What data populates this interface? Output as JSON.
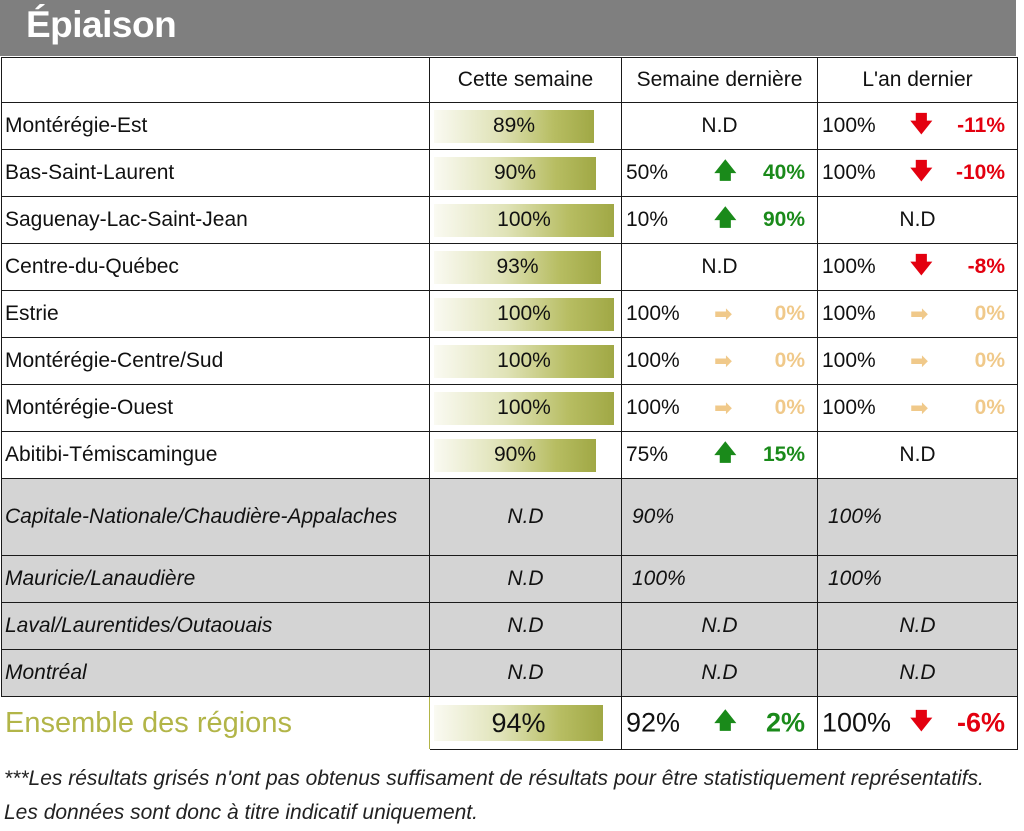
{
  "title": "Épiaison",
  "columns": [
    "",
    "Cette semaine",
    "Semaine dernière",
    "L'an dernier"
  ],
  "colors": {
    "header_bg": "#7f7f7f",
    "up": "#1a8a1a",
    "down": "#e3000f",
    "flat": "#f0c98a",
    "total_label": "#b2b548"
  },
  "rows": [
    {
      "region": "Montérégie-Est",
      "this_week": "89%",
      "this_week_pct": 89,
      "last_week": {
        "nd": "N.D"
      },
      "last_year": {
        "value": "100%",
        "arrow": "down",
        "delta": "-11%"
      }
    },
    {
      "region": "Bas-Saint-Laurent",
      "this_week": "90%",
      "this_week_pct": 90,
      "last_week": {
        "value": "50%",
        "arrow": "up",
        "delta": "40%"
      },
      "last_year": {
        "value": "100%",
        "arrow": "down",
        "delta": "-10%"
      }
    },
    {
      "region": "Saguenay-Lac-Saint-Jean",
      "this_week": "100%",
      "this_week_pct": 100,
      "last_week": {
        "value": "10%",
        "arrow": "up",
        "delta": "90%"
      },
      "last_year": {
        "nd": "N.D"
      }
    },
    {
      "region": "Centre-du-Québec",
      "this_week": "93%",
      "this_week_pct": 93,
      "last_week": {
        "nd": "N.D"
      },
      "last_year": {
        "value": "100%",
        "arrow": "down",
        "delta": "-8%"
      }
    },
    {
      "region": "Estrie",
      "this_week": "100%",
      "this_week_pct": 100,
      "last_week": {
        "value": "100%",
        "arrow": "flat",
        "delta": "0%"
      },
      "last_year": {
        "value": "100%",
        "arrow": "flat",
        "delta": "0%"
      }
    },
    {
      "region": "Montérégie-Centre/Sud",
      "this_week": "100%",
      "this_week_pct": 100,
      "last_week": {
        "value": "100%",
        "arrow": "flat",
        "delta": "0%"
      },
      "last_year": {
        "value": "100%",
        "arrow": "flat",
        "delta": "0%"
      }
    },
    {
      "region": "Montérégie-Ouest",
      "this_week": "100%",
      "this_week_pct": 100,
      "last_week": {
        "value": "100%",
        "arrow": "flat",
        "delta": "0%"
      },
      "last_year": {
        "value": "100%",
        "arrow": "flat",
        "delta": "0%"
      }
    },
    {
      "region": "Abitibi-Témiscamingue",
      "this_week": "90%",
      "this_week_pct": 90,
      "last_week": {
        "value": "75%",
        "arrow": "up",
        "delta": "15%"
      },
      "last_year": {
        "nd": "N.D"
      }
    }
  ],
  "gray_rows": [
    {
      "region": "Capitale-Nationale/Chaudière-Appalaches",
      "this_week": "N.D",
      "last_week": "90%",
      "last_year": "100%"
    },
    {
      "region": "Mauricie/Lanaudière",
      "this_week": "N.D",
      "last_week": "100%",
      "last_year": "100%"
    },
    {
      "region": "Laval/Laurentides/Outaouais",
      "this_week": "N.D",
      "last_week_nd": "N.D",
      "last_year_nd": "N.D"
    },
    {
      "region": "Montréal",
      "this_week": "N.D",
      "last_week_nd": "N.D",
      "last_year_nd": "N.D"
    }
  ],
  "total": {
    "region": "Ensemble des régions",
    "this_week": "94%",
    "this_week_pct": 94,
    "last_week": {
      "value": "92%",
      "arrow": "up",
      "delta": "2%"
    },
    "last_year": {
      "value": "100%",
      "arrow": "down",
      "delta": "-6%"
    }
  },
  "footnote": "***Les résultats grisés n'ont pas obtenus suffisament de résultats pour être statistiquement représentatifs. Les données sont donc à titre indicatif uniquement."
}
